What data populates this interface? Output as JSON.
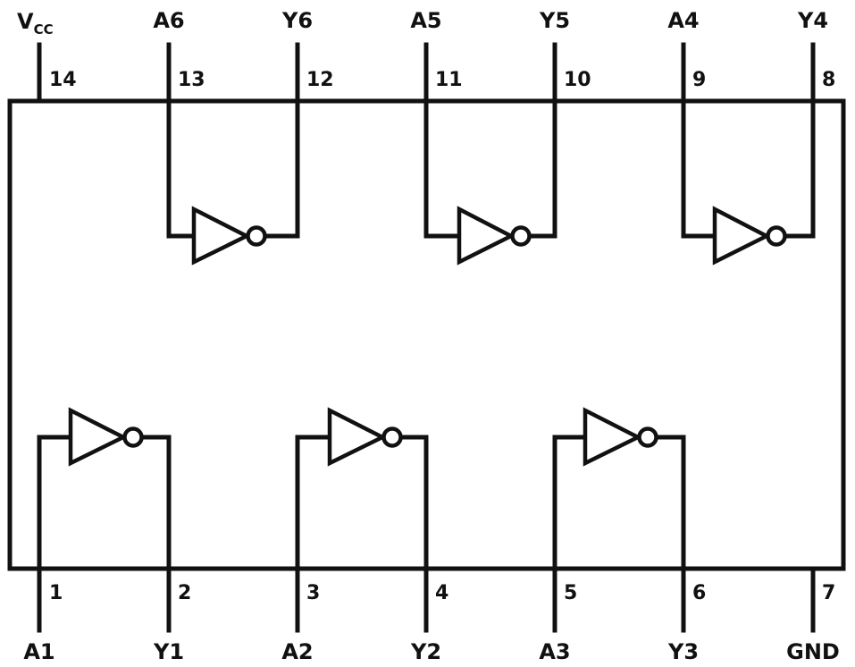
{
  "package_pins": [
    {
      "number": "14",
      "signal": "V",
      "signal_sub": "CC"
    },
    {
      "number": "13",
      "signal": "A6"
    },
    {
      "number": "12",
      "signal": "Y6"
    },
    {
      "number": "11",
      "signal": "A5"
    },
    {
      "number": "10",
      "signal": "Y5"
    },
    {
      "number": "9",
      "signal": "A4"
    },
    {
      "number": "8",
      "signal": "Y4"
    },
    {
      "number": "1",
      "signal": "A1"
    },
    {
      "number": "2",
      "signal": "Y1"
    },
    {
      "number": "3",
      "signal": "A2"
    },
    {
      "number": "4",
      "signal": "Y2"
    },
    {
      "number": "5",
      "signal": "A3"
    },
    {
      "number": "6",
      "signal": "Y3"
    },
    {
      "number": "7",
      "signal": "GND"
    }
  ],
  "gates": [
    {
      "type": "inverter",
      "input": "A6",
      "output": "Y6"
    },
    {
      "type": "inverter",
      "input": "A5",
      "output": "Y5"
    },
    {
      "type": "inverter",
      "input": "A4",
      "output": "Y4"
    },
    {
      "type": "inverter",
      "input": "A1",
      "output": "Y1"
    },
    {
      "type": "inverter",
      "input": "A2",
      "output": "Y2"
    },
    {
      "type": "inverter",
      "input": "A3",
      "output": "Y3"
    }
  ]
}
